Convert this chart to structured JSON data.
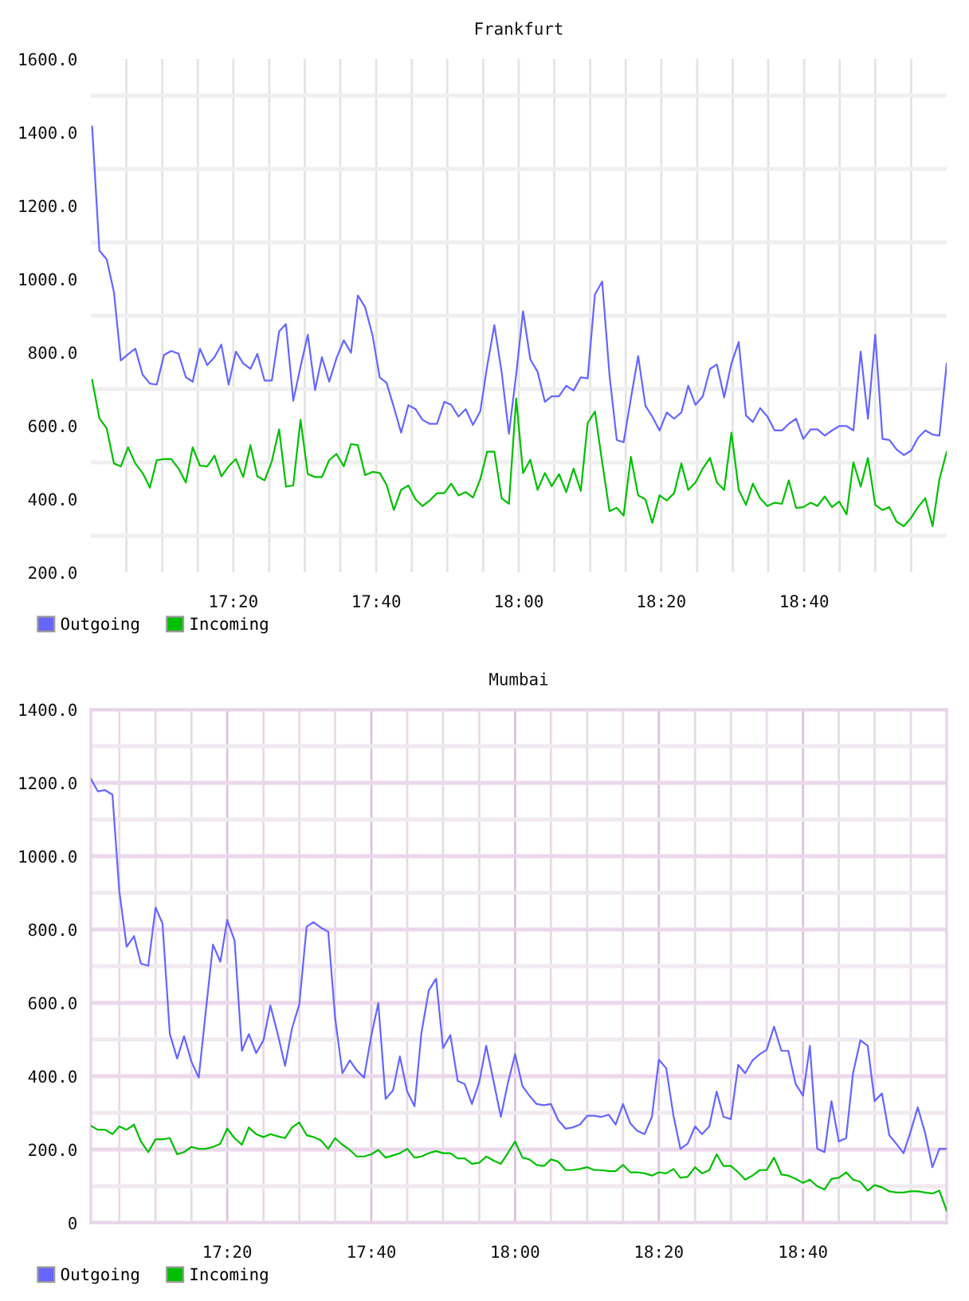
{
  "chart_data": [
    {
      "type": "line",
      "title": "Frankfurt",
      "x": [
        17.003,
        17.02,
        17.037,
        17.054,
        17.07,
        17.087,
        17.104,
        17.121,
        17.138,
        17.154,
        17.171,
        17.188,
        17.205,
        17.222,
        17.238,
        17.255,
        17.272,
        17.289,
        17.305,
        17.322,
        17.339,
        17.356,
        17.373,
        17.389,
        17.406,
        17.423,
        17.44,
        17.456,
        17.473,
        17.49,
        17.507,
        17.524,
        17.54,
        17.557,
        17.574,
        17.591,
        17.608,
        17.624,
        17.641,
        17.658,
        17.675,
        17.691,
        17.708,
        17.725,
        17.742,
        17.759,
        17.775,
        17.792,
        17.809,
        17.826,
        17.842,
        17.859,
        17.876,
        17.893,
        17.91,
        17.926,
        17.943,
        17.96,
        17.977,
        17.994,
        18.01,
        18.027,
        18.044,
        18.061,
        18.077,
        18.094,
        18.111,
        18.128,
        18.145,
        18.161,
        18.178,
        18.195,
        18.212,
        18.229,
        18.245,
        18.262,
        18.279,
        18.296,
        18.312,
        18.329,
        18.346,
        18.363,
        18.38,
        18.396,
        18.413,
        18.43,
        18.447,
        18.463,
        18.48,
        18.497,
        18.514,
        18.531,
        18.547,
        18.564,
        18.581,
        18.598,
        18.615,
        18.631,
        18.648,
        18.665,
        18.682,
        18.698,
        18.715,
        18.732,
        18.749,
        18.766,
        18.782,
        18.799,
        18.816,
        18.833,
        18.85,
        18.866,
        18.883,
        18.9,
        18.917,
        18.933,
        18.95,
        18.967,
        18.983,
        19.0
      ],
      "series": [
        {
          "name": "Outgoing",
          "color": "#6666ff",
          "values": [
            1416,
            1077,
            1054,
            964,
            778,
            795,
            810,
            739,
            715,
            712,
            793,
            804,
            796,
            732,
            720,
            810,
            765,
            787,
            821,
            712,
            802,
            770,
            755,
            796,
            723,
            723,
            857,
            877,
            668,
            761,
            848,
            697,
            787,
            720,
            784,
            833,
            799,
            955,
            923,
            848,
            732,
            717,
            651,
            581,
            656,
            645,
            616,
            605,
            605,
            665,
            657,
            625,
            645,
            602,
            639,
            761,
            874,
            746,
            578,
            740,
            912,
            781,
            747,
            665,
            680,
            680,
            709,
            696,
            732,
            729,
            958,
            993,
            738,
            561,
            555,
            674,
            790,
            654,
            625,
            587,
            636,
            619,
            636,
            709,
            657,
            680,
            755,
            767,
            677,
            770,
            828,
            628,
            610,
            648,
            625,
            587,
            587,
            605,
            619,
            564,
            590,
            590,
            573,
            587,
            599,
            599,
            587,
            802,
            619,
            848,
            564,
            561,
            535,
            520,
            532,
            567,
            587,
            576,
            573,
            770
          ]
        },
        {
          "name": "Incoming",
          "color": "#00c000",
          "values": [
            725,
            620,
            593,
            497,
            489,
            541,
            497,
            471,
            431,
            506,
            509,
            509,
            483,
            445,
            541,
            491,
            489,
            518,
            462,
            489,
            509,
            460,
            547,
            462,
            451,
            503,
            590,
            434,
            437,
            616,
            468,
            460,
            460,
            506,
            523,
            489,
            550,
            547,
            465,
            474,
            471,
            439,
            370,
            425,
            437,
            399,
            381,
            396,
            416,
            416,
            442,
            410,
            419,
            404,
            454,
            529,
            529,
            402,
            387,
            674,
            471,
            507,
            425,
            471,
            435,
            468,
            419,
            483,
            422,
            607,
            639,
            500,
            367,
            376,
            355,
            515,
            410,
            399,
            335,
            410,
            396,
            416,
            497,
            425,
            445,
            483,
            512,
            445,
            425,
            581,
            425,
            384,
            442,
            402,
            381,
            390,
            387,
            451,
            376,
            378,
            390,
            381,
            407,
            378,
            393,
            358,
            500,
            434,
            512,
            384,
            370,
            378,
            338,
            326,
            349,
            378,
            402,
            326,
            454,
            529
          ]
        }
      ],
      "xlim": [
        17.0,
        19.0
      ],
      "xticks": [
        {
          "value": 17.083,
          "label": null
        },
        {
          "value": 17.167,
          "label": null
        },
        {
          "value": 17.25,
          "label": null
        },
        {
          "value": 17.333,
          "label": "17:20"
        },
        {
          "value": 17.417,
          "label": null
        },
        {
          "value": 17.5,
          "label": null
        },
        {
          "value": 17.583,
          "label": null
        },
        {
          "value": 17.667,
          "label": "17:40"
        },
        {
          "value": 17.75,
          "label": null
        },
        {
          "value": 17.833,
          "label": null
        },
        {
          "value": 17.917,
          "label": null
        },
        {
          "value": 18.0,
          "label": "18:00"
        },
        {
          "value": 18.083,
          "label": null
        },
        {
          "value": 18.167,
          "label": null
        },
        {
          "value": 18.25,
          "label": null
        },
        {
          "value": 18.333,
          "label": "18:20"
        },
        {
          "value": 18.417,
          "label": null
        },
        {
          "value": 18.5,
          "label": null
        },
        {
          "value": 18.583,
          "label": null
        },
        {
          "value": 18.667,
          "label": "18:40"
        },
        {
          "value": 18.75,
          "label": null
        },
        {
          "value": 18.833,
          "label": null
        },
        {
          "value": 18.917,
          "label": null
        }
      ],
      "ylim": [
        200,
        1600
      ],
      "yticks": [
        {
          "value": 200,
          "label": "200.0"
        },
        {
          "value": 300,
          "label": null
        },
        {
          "value": 400,
          "label": "400.0"
        },
        {
          "value": 500,
          "label": null
        },
        {
          "value": 600,
          "label": "600.0"
        },
        {
          "value": 700,
          "label": null
        },
        {
          "value": 800,
          "label": "800.0"
        },
        {
          "value": 900,
          "label": null
        },
        {
          "value": 1000,
          "label": "1000.0"
        },
        {
          "value": 1100,
          "label": null
        },
        {
          "value": 1200,
          "label": "1200.0"
        },
        {
          "value": 1300,
          "label": null
        },
        {
          "value": 1400,
          "label": "1400.0"
        },
        {
          "value": 1500,
          "label": null
        },
        {
          "value": 1600,
          "label": "1600.0"
        }
      ],
      "grid": true,
      "legend": "bottom left"
    },
    {
      "type": "line",
      "title": "Mumbai",
      "x": [
        17.017,
        17.033,
        17.05,
        17.067,
        17.083,
        17.1,
        17.117,
        17.133,
        17.15,
        17.167,
        17.183,
        17.2,
        17.217,
        17.233,
        17.25,
        17.267,
        17.283,
        17.3,
        17.317,
        17.333,
        17.35,
        17.367,
        17.383,
        17.4,
        17.417,
        17.433,
        17.45,
        17.467,
        17.483,
        17.5,
        17.517,
        17.533,
        17.55,
        17.567,
        17.583,
        17.6,
        17.617,
        17.633,
        17.65,
        17.667,
        17.683,
        17.7,
        17.717,
        17.733,
        17.75,
        17.767,
        17.783,
        17.8,
        17.817,
        17.833,
        17.85,
        17.867,
        17.883,
        17.9,
        17.917,
        17.933,
        17.95,
        17.967,
        17.983,
        18.0,
        18.017,
        18.033,
        18.05,
        18.067,
        18.083,
        18.1,
        18.117,
        18.133,
        18.15,
        18.167,
        18.183,
        18.2,
        18.217,
        18.233,
        18.25,
        18.267,
        18.283,
        18.3,
        18.317,
        18.333,
        18.35,
        18.367,
        18.383,
        18.4,
        18.417,
        18.433,
        18.45,
        18.467,
        18.483,
        18.5,
        18.517,
        18.533,
        18.55,
        18.567,
        18.583,
        18.6,
        18.617,
        18.633,
        18.65,
        18.667,
        18.683,
        18.7,
        18.717,
        18.733,
        18.75,
        18.767,
        18.783,
        18.8,
        18.817,
        18.833,
        18.85,
        18.867,
        18.883,
        18.9,
        18.917,
        18.933,
        18.95,
        18.967,
        18.983,
        19.0
      ],
      "series": [
        {
          "name": "Outgoing",
          "color": "#6666ff",
          "values": [
            1211,
            1177,
            1180,
            1168,
            904,
            753,
            782,
            707,
            701,
            860,
            817,
            515,
            448,
            509,
            440,
            396,
            573,
            759,
            712,
            826,
            770,
            469,
            515,
            463,
            498,
            593,
            515,
            428,
            530,
            596,
            808,
            820,
            805,
            794,
            559,
            408,
            443,
            416,
            396,
            512,
            599,
            338,
            361,
            454,
            358,
            318,
            518,
            634,
            666,
            477,
            512,
            387,
            379,
            324,
            384,
            483,
            387,
            289,
            380,
            460,
            373,
            347,
            324,
            321,
            324,
            280,
            257,
            260,
            268,
            292,
            292,
            289,
            295,
            268,
            324,
            271,
            251,
            242,
            289,
            445,
            422,
            292,
            202,
            216,
            263,
            242,
            263,
            358,
            289,
            283,
            431,
            408,
            443,
            460,
            472,
            535,
            469,
            469,
            379,
            347,
            483,
            202,
            193,
            332,
            222,
            231,
            408,
            498,
            483,
            332,
            353,
            239,
            216,
            190,
            251,
            315,
            245,
            152,
            202,
            202
          ]
        },
        {
          "name": "Incoming",
          "color": "#00c000",
          "values": [
            265,
            254,
            254,
            242,
            263,
            254,
            268,
            222,
            193,
            228,
            228,
            231,
            187,
            193,
            207,
            202,
            202,
            207,
            216,
            257,
            231,
            213,
            260,
            242,
            234,
            242,
            236,
            231,
            260,
            274,
            239,
            234,
            225,
            202,
            231,
            213,
            199,
            181,
            181,
            187,
            199,
            178,
            184,
            190,
            202,
            178,
            181,
            190,
            196,
            190,
            190,
            176,
            176,
            161,
            164,
            181,
            170,
            161,
            190,
            222,
            178,
            173,
            158,
            155,
            173,
            167,
            144,
            144,
            147,
            152,
            144,
            144,
            141,
            141,
            158,
            138,
            138,
            135,
            129,
            138,
            135,
            147,
            123,
            126,
            152,
            135,
            144,
            187,
            155,
            155,
            138,
            118,
            129,
            144,
            144,
            178,
            132,
            129,
            120,
            109,
            118,
            100,
            91,
            120,
            123,
            138,
            118,
            112,
            88,
            103,
            97,
            86,
            83,
            83,
            86,
            86,
            83,
            80,
            88,
            33
          ]
        }
      ],
      "xlim": [
        17.017,
        19.0
      ],
      "xticks": [
        {
          "value": 17.083,
          "label": null
        },
        {
          "value": 17.167,
          "label": null
        },
        {
          "value": 17.25,
          "label": null
        },
        {
          "value": 17.333,
          "label": "17:20"
        },
        {
          "value": 17.417,
          "label": null
        },
        {
          "value": 17.5,
          "label": null
        },
        {
          "value": 17.583,
          "label": null
        },
        {
          "value": 17.667,
          "label": "17:40"
        },
        {
          "value": 17.75,
          "label": null
        },
        {
          "value": 17.833,
          "label": null
        },
        {
          "value": 17.917,
          "label": null
        },
        {
          "value": 18.0,
          "label": "18:00"
        },
        {
          "value": 18.083,
          "label": null
        },
        {
          "value": 18.167,
          "label": null
        },
        {
          "value": 18.25,
          "label": null
        },
        {
          "value": 18.333,
          "label": "18:20"
        },
        {
          "value": 18.417,
          "label": null
        },
        {
          "value": 18.5,
          "label": null
        },
        {
          "value": 18.583,
          "label": null
        },
        {
          "value": 18.667,
          "label": "18:40"
        },
        {
          "value": 18.75,
          "label": null
        },
        {
          "value": 18.833,
          "label": null
        },
        {
          "value": 18.917,
          "label": null
        }
      ],
      "ylim": [
        0,
        1400
      ],
      "yticks": [
        {
          "value": 0,
          "label": "0"
        },
        {
          "value": 100,
          "label": null
        },
        {
          "value": 200,
          "label": "200.0"
        },
        {
          "value": 300,
          "label": null
        },
        {
          "value": 400,
          "label": "400.0"
        },
        {
          "value": 500,
          "label": null
        },
        {
          "value": 600,
          "label": "600.0"
        },
        {
          "value": 700,
          "label": null
        },
        {
          "value": 800,
          "label": "800.0"
        },
        {
          "value": 900,
          "label": null
        },
        {
          "value": 1000,
          "label": "1000.0"
        },
        {
          "value": 1100,
          "label": null
        },
        {
          "value": 1200,
          "label": "1200.0"
        },
        {
          "value": 1300,
          "label": null
        },
        {
          "value": 1400,
          "label": "1400.0"
        }
      ],
      "grid": true,
      "legend": "bottom left"
    }
  ]
}
